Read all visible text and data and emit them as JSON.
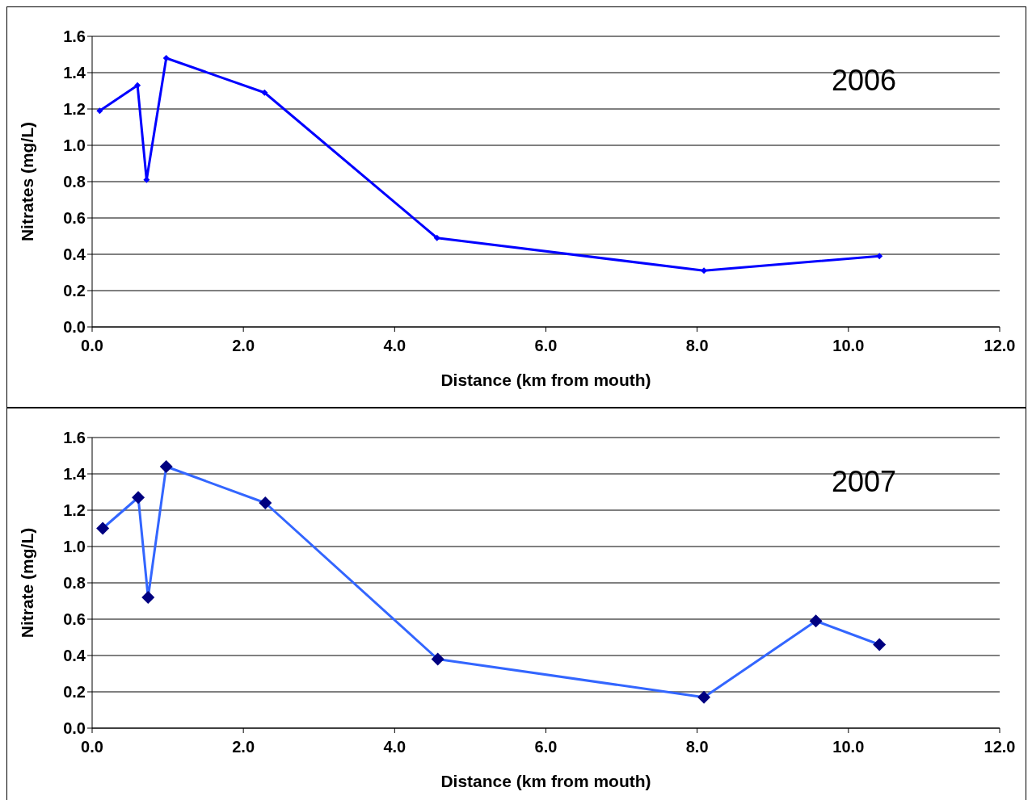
{
  "chart_data": [
    {
      "type": "line",
      "xlabel": "Distance (km from mouth)",
      "ylabel": "Nitrates (mg/L)",
      "annotations": [
        "2006"
      ],
      "x": [
        0.1,
        0.6,
        0.72,
        0.98,
        2.28,
        4.56,
        8.09,
        10.41
      ],
      "series": [
        {
          "color": "#0000ff",
          "values": [
            1.19,
            1.33,
            0.81,
            1.48,
            1.29,
            0.49,
            0.31,
            0.39
          ]
        }
      ],
      "xlim": [
        0,
        12
      ],
      "xticks": [
        {
          "value": 0,
          "label": "0.0"
        },
        {
          "value": 2,
          "label": "2.0"
        },
        {
          "value": 4,
          "label": "4.0"
        },
        {
          "value": 6,
          "label": "6.0"
        },
        {
          "value": 8,
          "label": "8.0"
        },
        {
          "value": 10,
          "label": "10.0"
        },
        {
          "value": 12,
          "label": "12.0"
        }
      ],
      "ylim": [
        0,
        1.6
      ],
      "yticks": [
        {
          "value": 0,
          "label": "0.0"
        },
        {
          "value": 0.2,
          "label": "0.2"
        },
        {
          "value": 0.4,
          "label": "0.4"
        },
        {
          "value": 0.6,
          "label": "0.6"
        },
        {
          "value": 0.8,
          "label": "0.8"
        },
        {
          "value": 1,
          "label": "1.0"
        },
        {
          "value": 1.2,
          "label": "1.2"
        },
        {
          "value": 1.4,
          "label": "1.4"
        },
        {
          "value": 1.6,
          "label": "1.6"
        }
      ],
      "grid": "y",
      "marker": "diamond",
      "line_style": "solid"
    },
    {
      "type": "line",
      "xlabel": "Distance (km from mouth)",
      "ylabel": "Nitrate (mg/L)",
      "annotations": [
        "2007"
      ],
      "x": [
        0.14,
        0.61,
        0.74,
        0.98,
        2.29,
        4.57,
        8.09,
        9.57,
        10.41
      ],
      "series": [
        {
          "color": "#3366ff",
          "colors": [
            "#000080",
            "#000080",
            "#000080",
            "#000080",
            "#000080",
            "#000080",
            "#000080",
            "#000080",
            "#000080"
          ],
          "values": [
            1.1,
            1.27,
            0.72,
            1.44,
            1.24,
            0.38,
            0.17,
            0.59,
            0.46
          ]
        }
      ],
      "xlim": [
        0,
        12
      ],
      "xticks": [
        {
          "value": 0,
          "label": "0.0"
        },
        {
          "value": 2,
          "label": "2.0"
        },
        {
          "value": 4,
          "label": "4.0"
        },
        {
          "value": 6,
          "label": "6.0"
        },
        {
          "value": 8,
          "label": "8.0"
        },
        {
          "value": 10,
          "label": "10.0"
        },
        {
          "value": 12,
          "label": "12.0"
        }
      ],
      "ylim": [
        0,
        1.6
      ],
      "yticks": [
        {
          "value": 0,
          "label": "0.0"
        },
        {
          "value": 0.2,
          "label": "0.2"
        },
        {
          "value": 0.4,
          "label": "0.4"
        },
        {
          "value": 0.6,
          "label": "0.6"
        },
        {
          "value": 0.8,
          "label": "0.8"
        },
        {
          "value": 1,
          "label": "1.0"
        },
        {
          "value": 1.2,
          "label": "1.2"
        },
        {
          "value": 1.4,
          "label": "1.4"
        },
        {
          "value": 1.6,
          "label": "1.6"
        }
      ],
      "grid": "y",
      "marker": "diamond",
      "line_style": "solid"
    }
  ]
}
